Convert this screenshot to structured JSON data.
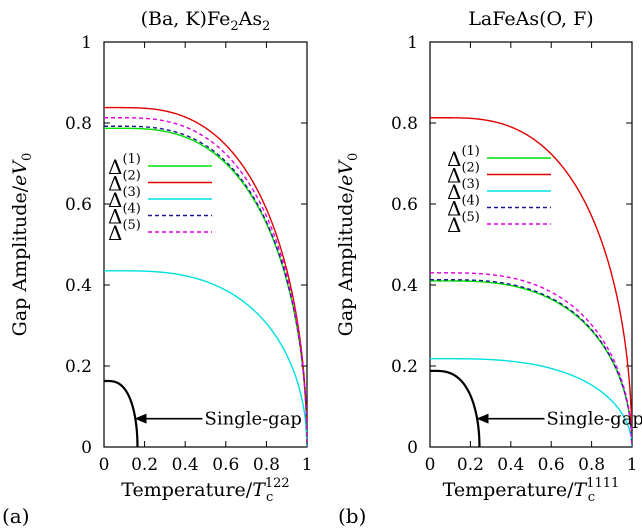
{
  "panels": [
    {
      "panel_label": "(a)",
      "chart_data": {
        "type": "line",
        "title": {
          "pre": "(Ba, K)Fe",
          "sub1": "2",
          "mid": "As",
          "sub2": "2"
        },
        "ylabel": "Gap Amplitude/eV",
        "ylabel_sub": "0",
        "xlabel": "Temperature/T",
        "xlabel_sub": "c",
        "xlabel_sup": "122",
        "xlim": [
          0,
          1
        ],
        "ylim": [
          0,
          1
        ],
        "xticks": [
          "0",
          "0.2",
          "0.4",
          "0.6",
          "0.8",
          "1"
        ],
        "yticks": [
          "0",
          "0.2",
          "0.4",
          "0.6",
          "0.8",
          "1"
        ],
        "legend_position": "left-middle",
        "series": [
          {
            "name": "Δ",
            "sup": "(1)",
            "color": "#00e000",
            "dash": "solid",
            "delta0": 0.787,
            "tc": 1.0
          },
          {
            "name": "Δ",
            "sup": "(2)",
            "color": "#e00000",
            "dash": "solid",
            "delta0": 0.838,
            "tc": 1.0
          },
          {
            "name": "Δ",
            "sup": "(3)",
            "color": "#00e0e0",
            "dash": "solid",
            "delta0": 0.435,
            "tc": 1.0
          },
          {
            "name": "Δ",
            "sup": "(4)",
            "color": "#1a1a8c",
            "dash": "dashed",
            "delta0": 0.792,
            "tc": 1.0
          },
          {
            "name": "Δ",
            "sup": "(5)",
            "color": "#e000e0",
            "dash": "dashed",
            "delta0": 0.813,
            "tc": 1.0
          }
        ],
        "single_gap": {
          "delta0": 0.163,
          "tc": 0.165,
          "color": "#000000"
        },
        "annotation": "Single-gap"
      }
    },
    {
      "panel_label": "(b)",
      "chart_data": {
        "type": "line",
        "title": {
          "pre": "LaFeAs(O, F)",
          "sub1": "",
          "mid": "",
          "sub2": ""
        },
        "ylabel": "Gap Amplitude/eV",
        "ylabel_sub": "0",
        "xlabel": "Temperature/T",
        "xlabel_sub": "c",
        "xlabel_sup": "1111",
        "xlim": [
          0,
          1
        ],
        "ylim": [
          0,
          1
        ],
        "xticks": [
          "0",
          "0.2",
          "0.4",
          "0.6",
          "0.8",
          "1"
        ],
        "yticks": [
          "0",
          "0.2",
          "0.4",
          "0.6",
          "0.8",
          "1"
        ],
        "legend_position": "left-upper",
        "series": [
          {
            "name": "Δ",
            "sup": "(1)",
            "color": "#00e000",
            "dash": "solid",
            "delta0": 0.41,
            "tc": 1.0
          },
          {
            "name": "Δ",
            "sup": "(2)",
            "color": "#e00000",
            "dash": "solid",
            "delta0": 0.813,
            "tc": 1.0
          },
          {
            "name": "Δ",
            "sup": "(3)",
            "color": "#00e0e0",
            "dash": "solid",
            "delta0": 0.218,
            "tc": 1.0
          },
          {
            "name": "Δ",
            "sup": "(4)",
            "color": "#1a1a8c",
            "dash": "dashed",
            "delta0": 0.413,
            "tc": 1.0
          },
          {
            "name": "Δ",
            "sup": "(5)",
            "color": "#e000e0",
            "dash": "dashed",
            "delta0": 0.43,
            "tc": 1.0
          }
        ],
        "single_gap": {
          "delta0": 0.188,
          "tc": 0.245,
          "color": "#000000"
        },
        "annotation": "Single-gap"
      }
    }
  ]
}
